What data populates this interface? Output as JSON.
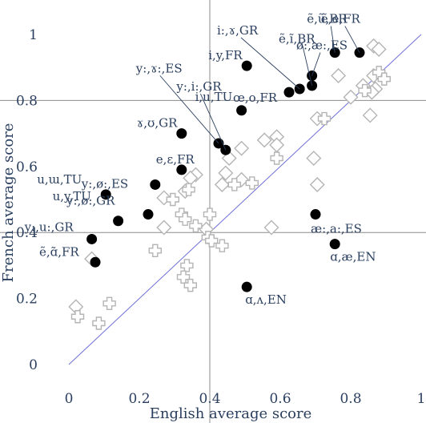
{
  "chart_data": {
    "type": "scatter",
    "xlabel": "English average score",
    "ylabel": "French average score",
    "xlim": [
      -0.05,
      1.0
    ],
    "ylim": [
      -0.05,
      1.05
    ],
    "x_ticks": [
      "0",
      "0.2",
      "0.4",
      "0.6",
      "0.8",
      "1"
    ],
    "x_tick_values": [
      0,
      0.2,
      0.4,
      0.6,
      0.8,
      1.0
    ],
    "y_ticks": [
      "0",
      "0.2",
      "0.4",
      "0.6",
      "0.8",
      "1"
    ],
    "y_tick_values": [
      0,
      0.2,
      0.4,
      0.6,
      0.8,
      1.0
    ],
    "grid": true,
    "reference_lines": {
      "x": 0.4,
      "y": 0.4,
      "diagonal": [
        [
          0,
          0
        ],
        [
          1,
          1
        ]
      ]
    },
    "colors": {
      "text": "#2a3f5f",
      "grid": "#8c8c8c",
      "diagonal": "#6f6fd8",
      "filled": "#000000",
      "hollow": "#ffffff",
      "hollow_edge": "#b4b4b4"
    },
    "series": [
      {
        "marker": "circle-filled",
        "points": [
          {
            "x": 0.825,
            "y": 0.945,
            "label": "ẽ,e,FR"
          },
          {
            "x": 0.755,
            "y": 0.945,
            "label": "ẽ,ũ,BR"
          },
          {
            "x": 0.69,
            "y": 0.875,
            "label": "ø:,æ:,ES"
          },
          {
            "x": 0.69,
            "y": 0.845,
            "label": "ẽ,ĩ,BR"
          },
          {
            "x": 0.655,
            "y": 0.835,
            "label": "i:,ɤ,GR"
          },
          {
            "x": 0.625,
            "y": 0.825,
            "label": "œ,o,FR"
          },
          {
            "x": 0.505,
            "y": 0.905,
            "label": "i,y,FR"
          },
          {
            "x": 0.49,
            "y": 0.77,
            "label": "i,u,TU"
          },
          {
            "x": 0.425,
            "y": 0.67,
            "label": "y:,ɤ:,ES"
          },
          {
            "x": 0.445,
            "y": 0.65,
            "label": "y:,i:,GR"
          },
          {
            "x": 0.32,
            "y": 0.7,
            "label": "ɤ,ʊ,GR"
          },
          {
            "x": 0.32,
            "y": 0.59,
            "label": "e,ɛ,FR"
          },
          {
            "x": 0.245,
            "y": 0.545,
            "label": "y:,ø:,ES"
          },
          {
            "x": 0.105,
            "y": 0.515,
            "label": "u,ɯ,TU"
          },
          {
            "x": 0.225,
            "y": 0.455,
            "label": "y:,ø:,GR"
          },
          {
            "x": 0.14,
            "y": 0.435,
            "label": "u,y,TU"
          },
          {
            "x": 0.065,
            "y": 0.38,
            "label": "y:,u:,GR"
          },
          {
            "x": 0.075,
            "y": 0.31,
            "label": "ẽ,ɑ̃,FR"
          },
          {
            "x": 0.7,
            "y": 0.455,
            "label": "æ:,a:,ES"
          },
          {
            "x": 0.755,
            "y": 0.365,
            "label": "ɑ,æ,EN"
          },
          {
            "x": 0.505,
            "y": 0.235,
            "label": "ɑ,ʌ,EN"
          }
        ]
      },
      {
        "marker": "diamond-open",
        "points": [
          {
            "x": 0.865,
            "y": 0.965
          },
          {
            "x": 0.88,
            "y": 0.955
          },
          {
            "x": 0.765,
            "y": 0.875
          },
          {
            "x": 0.865,
            "y": 0.875
          },
          {
            "x": 0.835,
            "y": 0.845
          },
          {
            "x": 0.87,
            "y": 0.835
          },
          {
            "x": 0.86,
            "y": 0.825
          },
          {
            "x": 0.8,
            "y": 0.81
          },
          {
            "x": 0.855,
            "y": 0.755
          },
          {
            "x": 0.705,
            "y": 0.745
          },
          {
            "x": 0.59,
            "y": 0.69
          },
          {
            "x": 0.59,
            "y": 0.665
          },
          {
            "x": 0.49,
            "y": 0.655
          },
          {
            "x": 0.555,
            "y": 0.68
          },
          {
            "x": 0.455,
            "y": 0.625
          },
          {
            "x": 0.695,
            "y": 0.625
          },
          {
            "x": 0.445,
            "y": 0.58
          },
          {
            "x": 0.36,
            "y": 0.575
          },
          {
            "x": 0.345,
            "y": 0.565
          },
          {
            "x": 0.49,
            "y": 0.56
          },
          {
            "x": 0.435,
            "y": 0.545
          },
          {
            "x": 0.33,
            "y": 0.525
          },
          {
            "x": 0.705,
            "y": 0.545
          },
          {
            "x": 0.27,
            "y": 0.505
          },
          {
            "x": 0.575,
            "y": 0.415
          },
          {
            "x": 0.27,
            "y": 0.415
          },
          {
            "x": 0.39,
            "y": 0.41
          },
          {
            "x": 0.065,
            "y": 0.32
          },
          {
            "x": 0.02,
            "y": 0.175
          }
        ]
      },
      {
        "marker": "cross-open",
        "points": [
          {
            "x": 0.88,
            "y": 0.885
          },
          {
            "x": 0.895,
            "y": 0.865
          },
          {
            "x": 0.84,
            "y": 0.83
          },
          {
            "x": 0.725,
            "y": 0.745
          },
          {
            "x": 0.59,
            "y": 0.625
          },
          {
            "x": 0.52,
            "y": 0.55
          },
          {
            "x": 0.47,
            "y": 0.545
          },
          {
            "x": 0.34,
            "y": 0.53
          },
          {
            "x": 0.295,
            "y": 0.5
          },
          {
            "x": 0.32,
            "y": 0.455
          },
          {
            "x": 0.4,
            "y": 0.455
          },
          {
            "x": 0.33,
            "y": 0.44
          },
          {
            "x": 0.36,
            "y": 0.42
          },
          {
            "x": 0.395,
            "y": 0.385
          },
          {
            "x": 0.405,
            "y": 0.375
          },
          {
            "x": 0.435,
            "y": 0.36
          },
          {
            "x": 0.245,
            "y": 0.345
          },
          {
            "x": 0.335,
            "y": 0.3
          },
          {
            "x": 0.325,
            "y": 0.265
          },
          {
            "x": 0.345,
            "y": 0.24
          },
          {
            "x": 0.115,
            "y": 0.185
          },
          {
            "x": 0.025,
            "y": 0.145
          },
          {
            "x": 0.085,
            "y": 0.125
          }
        ]
      }
    ],
    "callouts": [
      {
        "label": "i:,ɤ,GR",
        "x": 0.655,
        "y": 0.835,
        "label_x": 0.475,
        "label_y": 1.0
      },
      {
        "label": "ẽ,ũ,BR",
        "x": 0.755,
        "y": 0.945,
        "label_x": 0.73,
        "label_y": 1.035
      },
      {
        "label": "ẽ,e,FR",
        "x": 0.825,
        "y": 0.945,
        "label_x": 0.77,
        "label_y": 1.035
      },
      {
        "label": "ẽ,ĩ,BR",
        "x": 0.69,
        "y": 0.845,
        "label_x": 0.65,
        "label_y": 0.975
      },
      {
        "label": "ø:,æ:,ES",
        "x": 0.69,
        "y": 0.875,
        "label_x": 0.7,
        "label_y": 0.955
      },
      {
        "label": "y:,ɤ:,ES",
        "x": 0.425,
        "y": 0.67,
        "label_x": 0.245,
        "label_y": 0.885
      },
      {
        "label": "y:,i:,GR",
        "x": 0.445,
        "y": 0.65,
        "label_x": 0.36,
        "label_y": 0.83
      }
    ]
  }
}
